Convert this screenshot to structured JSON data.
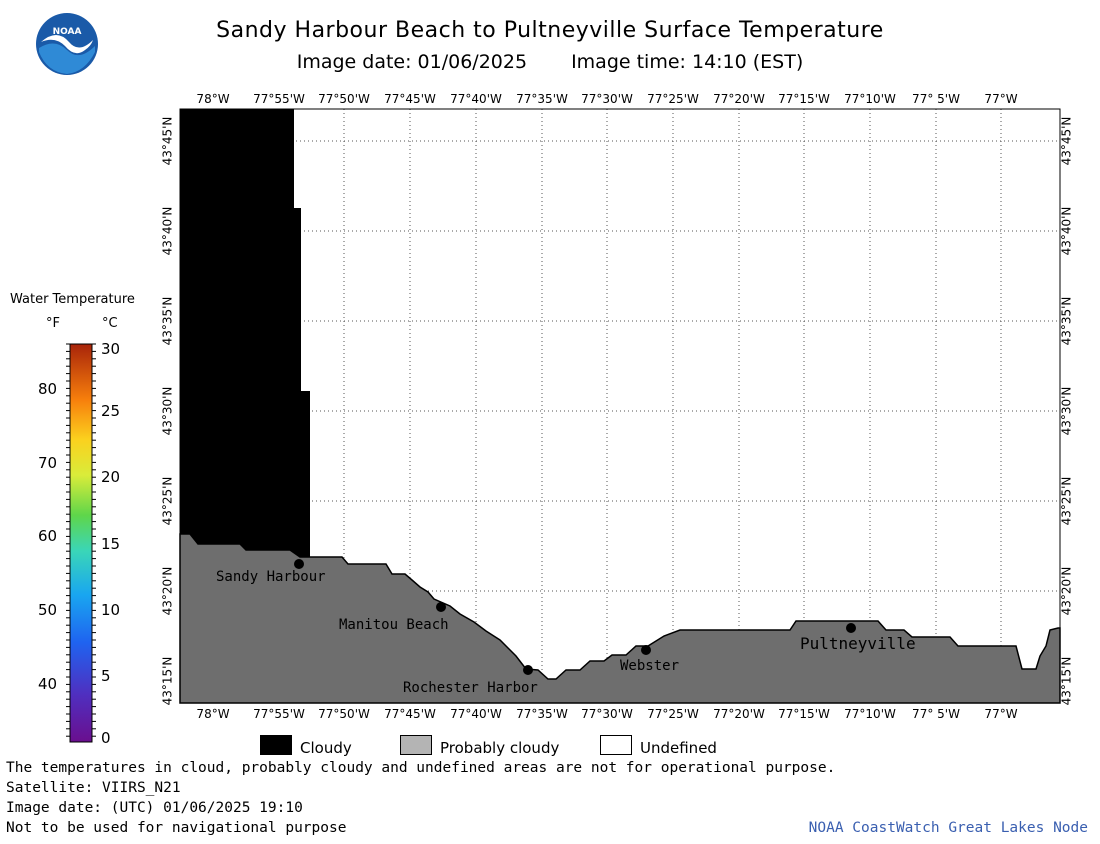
{
  "header": {
    "title": "Sandy Harbour Beach to Pultneyville Surface Temperature",
    "image_date": "Image date: 01/06/2025",
    "image_time": "Image time: 14:10 (EST)"
  },
  "logo": {
    "text": "NOAA",
    "icon": "noaa-logo-icon"
  },
  "map": {
    "lon_labels_top": [
      "78°W",
      "77°55'W",
      "77°50'W",
      "77°45'W",
      "77°40'W",
      "77°35'W",
      "77°30'W",
      "77°25'W",
      "77°20'W",
      "77°15'W",
      "77°10'W",
      "77° 5'W",
      "77°W"
    ],
    "lon_labels_bottom": [
      "78°W",
      "77°55'W",
      "77°50'W",
      "77°45'W",
      "77°40'W",
      "77°35'W",
      "77°30'W",
      "77°25'W",
      "77°20'W",
      "77°15'W",
      "77°10'W",
      "77° 5'W",
      "77°W"
    ],
    "lat_labels": [
      "43°45'N",
      "43°40'N",
      "43°35'N",
      "43°30'N",
      "43°25'N",
      "43°20'N",
      "43°15'N"
    ],
    "places": [
      "Sandy Harbour",
      "Manitou Beach",
      "Rochester Harbor",
      "Webster",
      "Pultneyville"
    ],
    "colors": {
      "cloudy": "#000000",
      "probably_cloudy": "#6e6e6e",
      "undefined": "#ffffff",
      "grid": "#555555"
    }
  },
  "legend": {
    "title": "Water Temperature",
    "unit_f": "°F",
    "unit_c": "°C",
    "f_labels": [
      "80",
      "70",
      "60",
      "50",
      "40"
    ],
    "c_labels": [
      "30",
      "25",
      "20",
      "15",
      "10",
      "5",
      "0"
    ]
  },
  "key": {
    "cloudy": "Cloudy",
    "probably_cloudy": "Probably cloudy",
    "undefined": "Undefined",
    "colors": {
      "cloudy": "#000000",
      "probably_cloudy": "#b4b4b4",
      "undefined": "#ffffff"
    }
  },
  "footer": {
    "line1": "The temperatures in cloud, probably cloudy and undefined areas are not for operational purpose.",
    "line2": "Satellite: VIIRS_N21",
    "line3": "Image date: (UTC) 01/06/2025  19:10",
    "line4": "Not to be used for navigational purpose",
    "credit": "NOAA CoastWatch Great Lakes Node"
  }
}
